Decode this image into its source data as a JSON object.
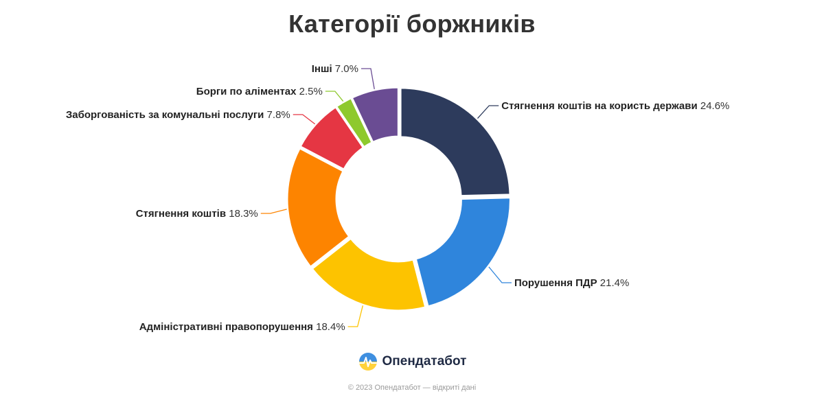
{
  "chart_data": {
    "type": "pie",
    "title": "Категорії боржників",
    "slices": [
      {
        "label": "Стягнення коштів на користь держави",
        "value": 24.6,
        "color": "#2d3b5c",
        "label_side": "right"
      },
      {
        "label": "Порушення ПДР",
        "value": 21.4,
        "color": "#2f85dc",
        "label_side": "right"
      },
      {
        "label": "Адміністративні правопорушення",
        "value": 18.4,
        "color": "#fdc300",
        "label_side": "left"
      },
      {
        "label": "Стягнення коштів",
        "value": 18.3,
        "color": "#fd8400",
        "label_side": "left"
      },
      {
        "label": "Заборгованість за комунальні послуги",
        "value": 7.8,
        "color": "#e53643",
        "label_side": "left"
      },
      {
        "label": "Борги по аліментах",
        "value": 2.5,
        "color": "#8ec92d",
        "label_side": "left"
      },
      {
        "label": "Інші",
        "value": 7.0,
        "color": "#6a4c93",
        "label_side": "left"
      }
    ],
    "value_suffix": "%",
    "legend": "none"
  },
  "brand": {
    "name": "Опендатабот",
    "icon": "opendatabot-logo-icon"
  },
  "footer": {
    "text": "© 2023 Опендатабот — відкриті дані"
  }
}
